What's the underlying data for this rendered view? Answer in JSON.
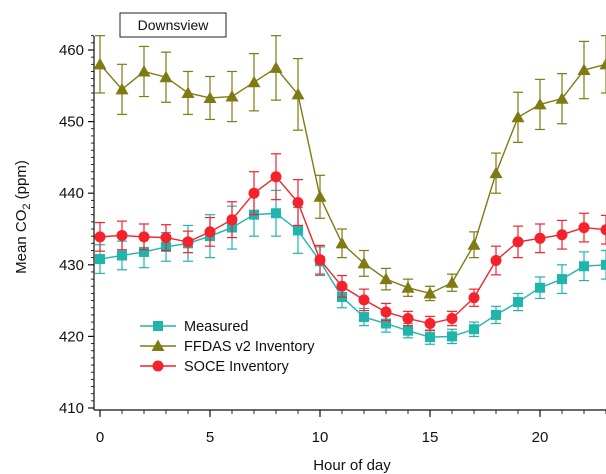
{
  "chart_data": {
    "type": "line",
    "annotation": "Downsview",
    "xlabel": "Hour of day",
    "ylabel_main": "Mean CO",
    "ylabel_sub": "2",
    "ylabel_unit": " (ppm)",
    "xlim": [
      -0.5,
      23
    ],
    "ylim": [
      409,
      463
    ],
    "xticks": [
      0,
      5,
      10,
      15,
      20
    ],
    "yticks": [
      410,
      420,
      430,
      440,
      450,
      460
    ],
    "grid": false,
    "legend_position": "lower-left",
    "x": [
      0,
      1,
      2,
      3,
      4,
      5,
      6,
      7,
      8,
      9,
      10,
      11,
      12,
      13,
      14,
      15,
      16,
      17,
      18,
      19,
      20,
      21,
      22,
      23
    ],
    "series": [
      {
        "name": "Measured",
        "color": "#1fb5ad",
        "marker": "square",
        "values": [
          430.8,
          431.3,
          431.8,
          432.5,
          433.0,
          434.0,
          435.2,
          437.0,
          437.2,
          434.8,
          430.5,
          425.5,
          422.7,
          421.8,
          420.8,
          419.9,
          420.0,
          421.0,
          423.0,
          424.8,
          426.8,
          428.0,
          429.8,
          430.0
        ],
        "errors": [
          2.0,
          2.0,
          2.2,
          2.0,
          2.5,
          3.0,
          3.0,
          3.0,
          3.2,
          3.2,
          2.0,
          1.5,
          1.2,
          1.2,
          1.0,
          1.0,
          1.0,
          1.0,
          1.2,
          1.2,
          1.5,
          2.0,
          2.0,
          2.0
        ]
      },
      {
        "name": "FFDAS v2 Inventory",
        "color": "#7f7a12",
        "marker": "triangle",
        "values": [
          458.0,
          454.5,
          457.0,
          456.2,
          454.0,
          453.3,
          453.5,
          455.5,
          457.5,
          453.8,
          439.5,
          433.0,
          430.2,
          428.0,
          426.8,
          426.0,
          427.5,
          432.8,
          442.8,
          450.6,
          452.4,
          453.2,
          457.2,
          458.0
        ],
        "errors": [
          4.0,
          3.5,
          3.5,
          3.5,
          3.0,
          3.0,
          3.5,
          4.0,
          4.5,
          5.0,
          3.0,
          2.0,
          1.8,
          1.5,
          1.2,
          1.0,
          1.2,
          1.8,
          2.8,
          3.5,
          3.5,
          3.5,
          4.0,
          4.0
        ]
      },
      {
        "name": "SOCE Inventory",
        "color": "#f5212b",
        "marker": "circle",
        "values": [
          433.9,
          434.1,
          433.9,
          433.8,
          433.2,
          434.6,
          436.3,
          440.0,
          442.3,
          438.7,
          430.7,
          427.0,
          425.1,
          423.4,
          422.5,
          421.8,
          422.5,
          425.4,
          430.6,
          433.2,
          433.7,
          434.2,
          435.2,
          434.9
        ],
        "errors": [
          2.0,
          2.0,
          1.8,
          1.8,
          1.5,
          2.0,
          2.5,
          3.0,
          3.2,
          3.2,
          2.0,
          1.5,
          1.5,
          1.2,
          1.0,
          1.0,
          1.0,
          1.2,
          2.0,
          2.2,
          2.0,
          2.0,
          2.0,
          2.0
        ]
      }
    ]
  }
}
